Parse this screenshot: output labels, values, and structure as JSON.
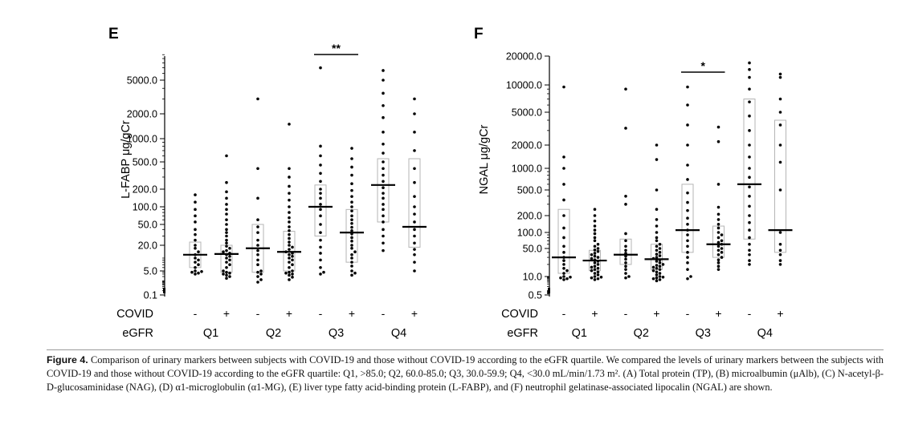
{
  "caption": {
    "label": "Figure 4.",
    "text": "Comparison of urinary markers between subjects with COVID-19 and those without COVID-19 according to the eGFR quartile. We compared the levels of urinary markers between the subjects with COVID-19 and those without COVID-19 according to the eGFR quartile: Q1, >85.0; Q2, 60.0-85.0; Q3, 30.0-59.9; Q4, <30.0 mL/min/1.73 m². (A) Total protein (TP), (B) microalbumin (μAlb), (C) N-acetyl-β-D-glucosaminidase (NAG), (D) α1-microglobulin (α1-MG), (E) liver type fatty acid-binding protein (L-FABP), and (F) neutrophil gelatinase-associated lipocalin (NGAL) are shown."
  },
  "chart_data": [
    {
      "type": "scatter",
      "panel": "E",
      "ylabel": "L-FABP  μg/gCr",
      "yscale": "log",
      "ylim": [
        0.1,
        10000
      ],
      "yticks": [
        "0.1",
        "5.0",
        "20.0",
        "50.0",
        "100.0",
        "200.0",
        "500.0",
        "1000.0",
        "2000.0",
        "5000.0"
      ],
      "ytick_values": [
        0.1,
        5,
        20,
        50,
        100,
        200,
        500,
        1000,
        2000,
        5000
      ],
      "row_labels": [
        "COVID",
        "eGFR"
      ],
      "categories": [
        "-",
        "+",
        "-",
        "+",
        "-",
        "+",
        "-",
        "+"
      ],
      "groups": [
        "Q1",
        "Q2",
        "Q3",
        "Q4"
      ],
      "significance": [
        {
          "from": 4,
          "to": 5,
          "label": "**"
        }
      ],
      "boxes": [
        {
          "low": 6,
          "median": 12,
          "high": 23
        },
        {
          "low": 4,
          "median": 12.5,
          "high": 20
        },
        {
          "low": 4,
          "median": 17,
          "high": 50
        },
        {
          "low": 5,
          "median": 14,
          "high": 37
        },
        {
          "low": 30,
          "median": 100,
          "high": 230
        },
        {
          "low": 8,
          "median": 35,
          "high": 90
        },
        {
          "low": 55,
          "median": 230,
          "high": 550
        },
        {
          "low": 18,
          "median": 45,
          "high": 550
        }
      ],
      "points": [
        [
          3,
          3.5,
          4,
          4.5,
          5,
          6,
          7,
          8,
          9,
          10,
          12,
          14,
          17,
          20,
          25,
          32,
          40,
          55,
          70,
          90,
          120,
          160
        ],
        [
          1.5,
          2,
          2.5,
          3,
          3.5,
          4,
          5,
          6,
          7,
          8,
          9,
          10,
          11,
          12,
          13,
          14,
          15,
          17,
          19,
          22,
          25,
          30,
          35,
          40,
          50,
          60,
          75,
          90,
          110,
          140,
          180,
          250,
          600
        ],
        [
          0.8,
          1.2,
          2,
          3,
          4,
          5,
          7,
          9,
          12,
          15,
          20,
          25,
          35,
          45,
          60,
          140,
          400,
          3000
        ],
        [
          1.2,
          1.8,
          2.5,
          3,
          3.5,
          4,
          5,
          6,
          7,
          8,
          9,
          10,
          11,
          12,
          13,
          14,
          16,
          18,
          20,
          23,
          27,
          32,
          38,
          45,
          55,
          65,
          80,
          100,
          130,
          170,
          220,
          300,
          400,
          1500
        ],
        [
          3,
          4,
          6,
          9,
          13,
          18,
          25,
          35,
          50,
          70,
          90,
          110,
          140,
          170,
          200,
          260,
          340,
          450,
          600,
          800,
          7000
        ],
        [
          2.5,
          3.5,
          5,
          6.5,
          8,
          10,
          12,
          14,
          17,
          20,
          24,
          28,
          33,
          38,
          44,
          52,
          60,
          70,
          85,
          100,
          120,
          150,
          190,
          240,
          320,
          420,
          550,
          750
        ],
        [
          15,
          22,
          30,
          40,
          55,
          70,
          90,
          110,
          140,
          170,
          210,
          260,
          320,
          400,
          500,
          650,
          850,
          1200,
          1800,
          2500,
          3500,
          5000,
          6500
        ],
        [
          5,
          8,
          12,
          16,
          22,
          30,
          40,
          55,
          75,
          100,
          150,
          250,
          400,
          700,
          1200,
          2000,
          3000
        ]
      ]
    },
    {
      "type": "scatter",
      "panel": "F",
      "ylabel": "NGAL  μg/gCr",
      "yscale": "log",
      "ylim": [
        0.5,
        20000
      ],
      "yticks": [
        "0.5",
        "10.0",
        "50.0",
        "100.0",
        "200.0",
        "500.0",
        "1000.0",
        "2000.0",
        "5000.0",
        "10000.0",
        "20000.0"
      ],
      "ytick_values": [
        0.5,
        10,
        50,
        100,
        200,
        500,
        1000,
        2000,
        5000,
        10000,
        20000
      ],
      "row_labels": [
        "COVID",
        "eGFR"
      ],
      "categories": [
        "-",
        "+",
        "-",
        "+",
        "-",
        "+",
        "-",
        "+"
      ],
      "groups": [
        "Q1",
        "Q2",
        "Q3",
        "Q4"
      ],
      "significance": [
        {
          "from": 4,
          "to": 5,
          "label": "*"
        }
      ],
      "boxes": [
        {
          "low": 12,
          "median": 30,
          "high": 250
        },
        {
          "low": 14,
          "median": 25,
          "high": 45
        },
        {
          "low": 20,
          "median": 35,
          "high": 75
        },
        {
          "low": 15,
          "median": 27,
          "high": 60
        },
        {
          "low": 40,
          "median": 110,
          "high": 600
        },
        {
          "low": 30,
          "median": 60,
          "high": 130
        },
        {
          "low": 75,
          "median": 600,
          "high": 7000
        },
        {
          "low": 40,
          "median": 110,
          "high": 4000
        }
      ],
      "points": [
        [
          6,
          7,
          8,
          9,
          10,
          12,
          14,
          16,
          20,
          25,
          30,
          40,
          55,
          80,
          120,
          200,
          350,
          600,
          1000,
          1400,
          9500
        ],
        [
          6,
          7,
          8,
          9,
          10,
          11,
          12,
          13,
          14,
          15,
          16,
          17,
          18,
          20,
          22,
          24,
          26,
          28,
          30,
          32,
          35,
          38,
          42,
          46,
          50,
          55,
          60,
          70,
          80,
          95,
          110,
          130,
          160,
          200,
          250
        ],
        [
          8,
          10,
          12,
          15,
          18,
          22,
          27,
          32,
          38,
          45,
          55,
          70,
          95,
          300,
          400,
          3200,
          9000
        ],
        [
          5,
          6,
          7,
          8,
          9,
          10,
          11,
          12,
          13,
          14,
          15,
          16,
          17,
          18,
          19,
          20,
          22,
          24,
          26,
          28,
          30,
          33,
          36,
          40,
          45,
          50,
          55,
          60,
          70,
          80,
          100,
          130,
          170,
          250,
          500,
          1300,
          2000
        ],
        [
          7,
          10,
          15,
          22,
          30,
          40,
          55,
          70,
          90,
          110,
          140,
          180,
          240,
          320,
          450,
          700,
          1100,
          2000,
          3500,
          6000,
          9500
        ],
        [
          15,
          18,
          22,
          26,
          30,
          35,
          40,
          45,
          50,
          55,
          60,
          65,
          70,
          80,
          90,
          100,
          120,
          140,
          170,
          210,
          270,
          600,
          2200,
          3300
        ],
        [
          20,
          25,
          35,
          45,
          60,
          80,
          110,
          150,
          200,
          280,
          400,
          550,
          750,
          1000,
          1400,
          2000,
          3000,
          4500,
          6500,
          9000,
          12000,
          14500,
          17000
        ],
        [
          20,
          25,
          35,
          45,
          60,
          100,
          500,
          1200,
          2000,
          3500,
          5000,
          7000,
          12000,
          13000
        ]
      ]
    }
  ]
}
